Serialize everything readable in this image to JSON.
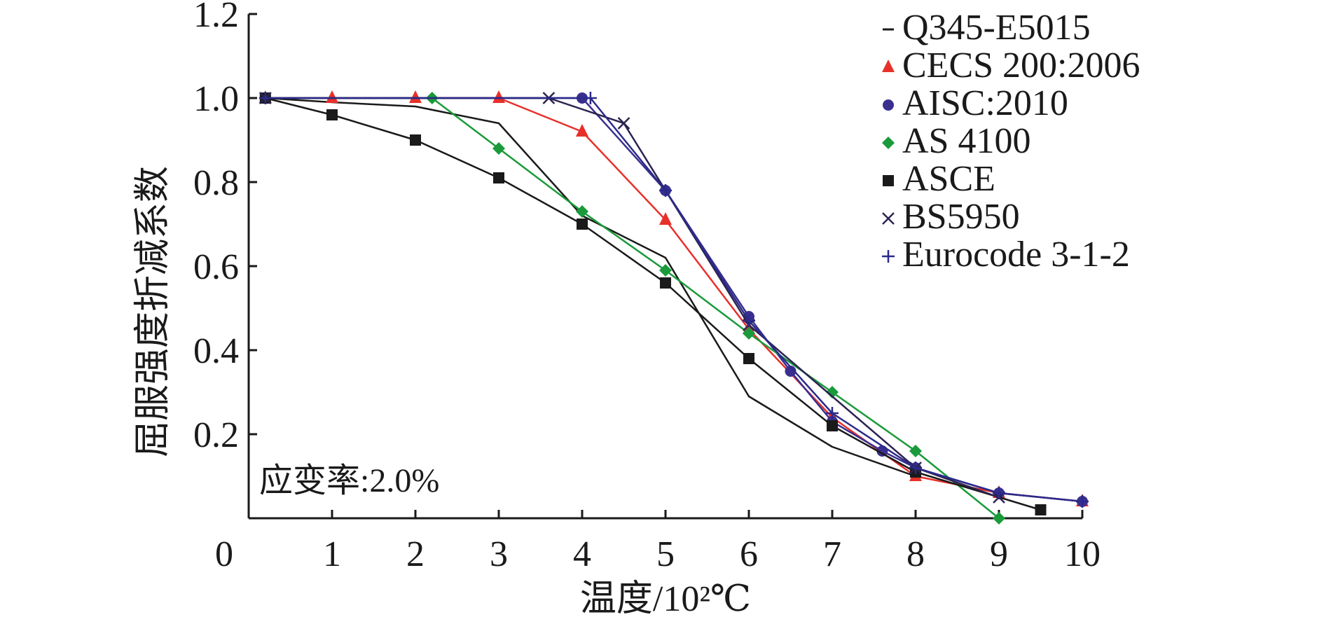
{
  "chart_data": {
    "type": "line",
    "xlabel": "温度/10²℃",
    "ylabel": "屈服强度折减系数",
    "xlim": [
      0,
      10
    ],
    "ylim": [
      0,
      1.2
    ],
    "x_ticks": [
      0,
      1,
      2,
      3,
      4,
      5,
      6,
      7,
      8,
      9,
      10
    ],
    "x_tick_labels": [
      "0",
      "1",
      "2",
      "3",
      "4",
      "5",
      "6",
      "7",
      "8",
      "9",
      "10"
    ],
    "y_ticks": [
      0.2,
      0.4,
      0.6,
      0.8,
      1.0,
      1.2
    ],
    "y_tick_labels": [
      "0.2",
      "0.4",
      "0.6",
      "0.8",
      "1.0",
      "1.2"
    ],
    "annotation": "应变率:2.0%",
    "legend_position": "top-right",
    "grid": false,
    "series": [
      {
        "name": "Q345-E5015",
        "color": "#1a1a1a",
        "marker": "dash",
        "x": [
          0.2,
          1,
          2,
          3,
          4,
          5,
          6,
          7,
          8
        ],
        "y": [
          1.0,
          0.99,
          0.98,
          0.94,
          0.72,
          0.62,
          0.29,
          0.17,
          0.1
        ]
      },
      {
        "name": "CECS 200:2006",
        "color": "#e8302a",
        "marker": "triangle",
        "x": [
          0.2,
          1,
          2,
          3,
          4,
          5,
          6,
          7,
          8,
          9,
          10
        ],
        "y": [
          1.0,
          1.0,
          1.0,
          1.0,
          0.92,
          0.71,
          0.45,
          0.24,
          0.1,
          0.06,
          0.04
        ]
      },
      {
        "name": "AISC:2010",
        "color": "#3a2f8f",
        "marker": "circle",
        "x": [
          0.2,
          4,
          5,
          6,
          6.5,
          7,
          7.6,
          8,
          9,
          10
        ],
        "y": [
          1.0,
          1.0,
          0.78,
          0.48,
          0.35,
          0.23,
          0.16,
          0.12,
          0.06,
          0.04
        ]
      },
      {
        "name": "AS 4100",
        "color": "#1a9a3a",
        "marker": "diamond",
        "x": [
          0.2,
          2.2,
          3,
          4,
          5,
          6,
          7,
          8,
          9
        ],
        "y": [
          1.0,
          1.0,
          0.88,
          0.73,
          0.59,
          0.44,
          0.3,
          0.16,
          0.0
        ]
      },
      {
        "name": "ASCE",
        "color": "#1a1a1a",
        "marker": "square",
        "x": [
          0.2,
          1,
          2,
          3,
          4,
          5,
          6,
          7,
          8,
          9.5
        ],
        "y": [
          1.0,
          0.96,
          0.9,
          0.81,
          0.7,
          0.56,
          0.38,
          0.22,
          0.11,
          0.02
        ]
      },
      {
        "name": "BS5950",
        "color": "#2b2350",
        "marker": "x",
        "x": [
          0.2,
          3.6,
          4.5,
          6,
          8,
          9
        ],
        "y": [
          1.0,
          1.0,
          0.94,
          0.46,
          0.12,
          0.05
        ]
      },
      {
        "name": "Eurocode 3-1-2",
        "color": "#2b2a8a",
        "marker": "plus",
        "x": [
          0.2,
          4.1,
          5,
          6,
          7,
          8,
          9,
          10
        ],
        "y": [
          1.0,
          1.0,
          0.78,
          0.47,
          0.25,
          0.12,
          0.06,
          0.04
        ]
      }
    ]
  }
}
